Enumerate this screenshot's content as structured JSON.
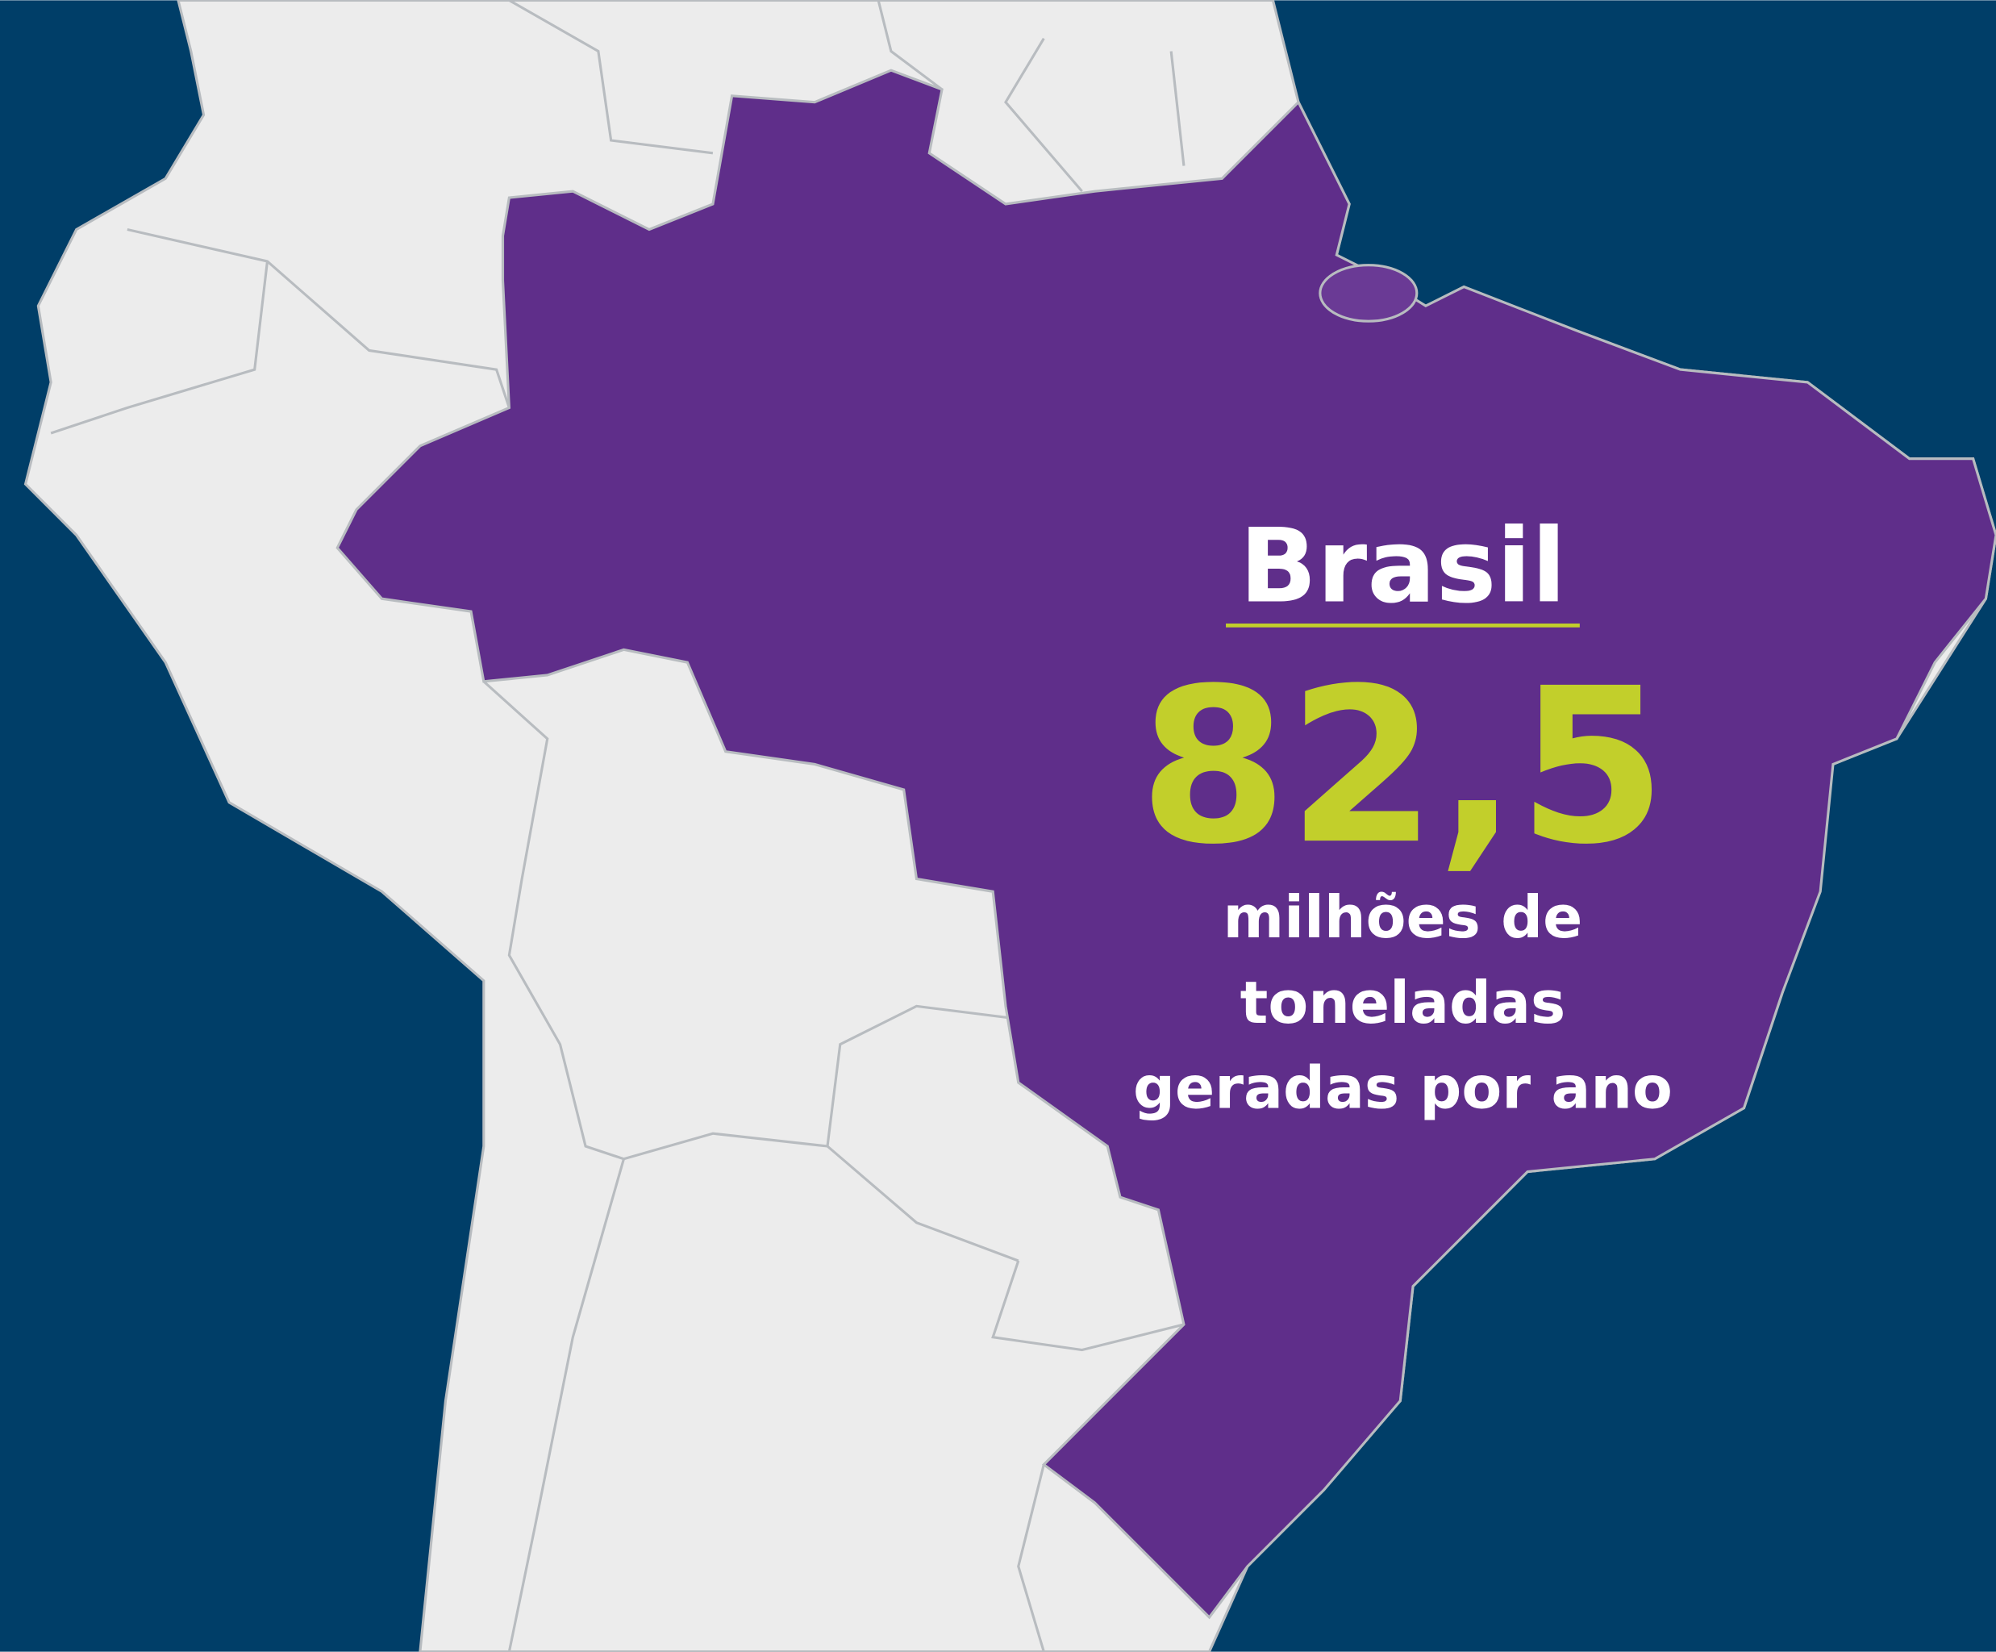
{
  "title": "Brasil",
  "figure": "82,5",
  "caption_lines": [
    "milhões de",
    "toneladas",
    "geradas por ano"
  ]
}
